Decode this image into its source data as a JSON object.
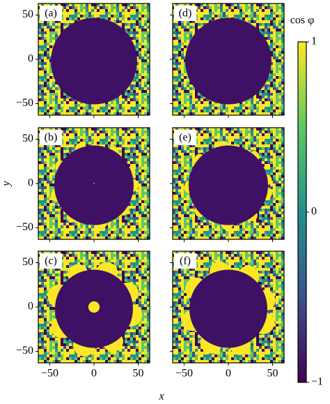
{
  "chart_data": {
    "type": "heatmap",
    "panels": [
      "(a)",
      "(b)",
      "(c)",
      "(d)",
      "(e)",
      "(f)"
    ],
    "xlabel": "x",
    "ylabel": "y",
    "xlim": [
      -63,
      63
    ],
    "ylim": [
      -63,
      63
    ],
    "xticks": [
      {
        "value": -50,
        "label": "−50"
      },
      0,
      50
    ],
    "yticks": [
      {
        "value": -50,
        "label": "−50"
      },
      0,
      50
    ],
    "colormap": [
      "#440154",
      "#3b528b",
      "#21918c",
      "#5ec962",
      "#fde725"
    ],
    "colorbar": {
      "label": "cos φ",
      "lim": [
        -1,
        1
      ],
      "ticks": [
        1,
        0,
        {
          "value": -1,
          "label": "−1"
        }
      ]
    }
  }
}
